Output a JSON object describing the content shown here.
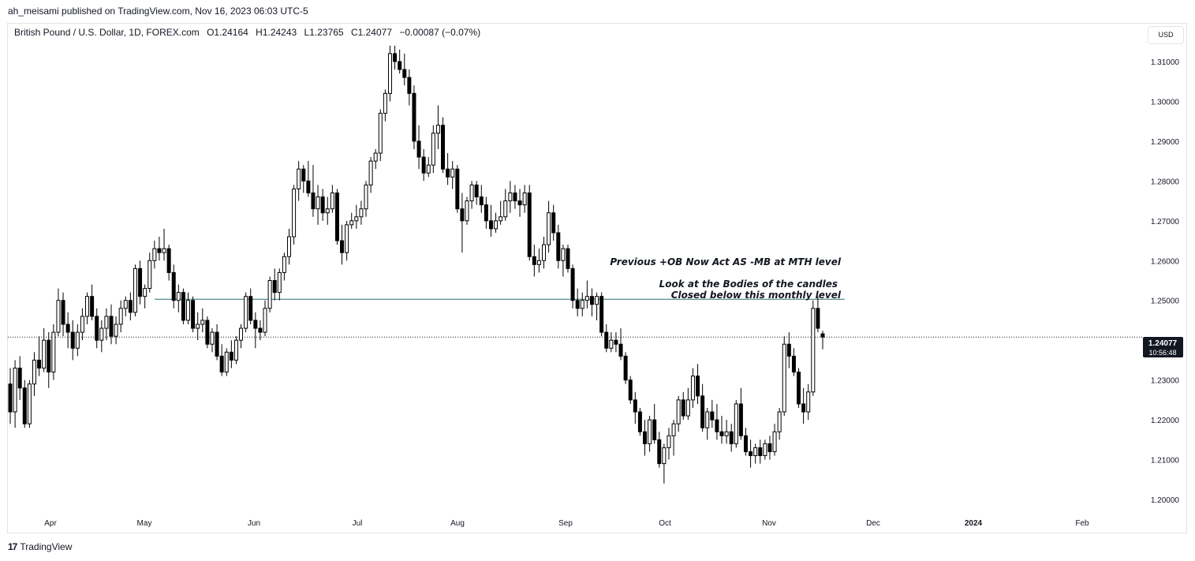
{
  "header": {
    "published": "ah_meisami published on TradingView.com, Nov 16, 2023 06:03 UTC-5"
  },
  "symbol": {
    "name": "British Pound / U.S. Dollar, 1D, FOREX.com",
    "open": "O1.24164",
    "high": "H1.24243",
    "low": "L1.23765",
    "close": "C1.24077",
    "change": "−0.00087 (−0.07%)"
  },
  "currency_button": "USD",
  "price_badge": {
    "price": "1.24077",
    "countdown": "10:56:48"
  },
  "annotations": {
    "line1": "Previous +OB Now Act AS -MB at MTH level",
    "line2": "Look at the Bodies of the candles",
    "line3": "Closed below this monthly level"
  },
  "footer": {
    "logo": "17",
    "brand": "TradingView"
  },
  "colors": {
    "up": "#ffffff",
    "down": "#000000",
    "wick": "#000000",
    "level_line": "#2f6f73",
    "axis_text": "#131722"
  },
  "chart_data": {
    "type": "candlestick",
    "y_axis": {
      "min": 1.195,
      "max": 1.3165,
      "ticks": [
        "1.31000",
        "1.30000",
        "1.29000",
        "1.28000",
        "1.27000",
        "1.26000",
        "1.25000",
        "1.23000",
        "1.22000",
        "1.21000",
        "1.20000"
      ]
    },
    "x_axis": {
      "ticks": [
        "Apr",
        "May",
        "Jun",
        "Jul",
        "Aug",
        "Sep",
        "Oct",
        "Nov",
        "Dec",
        "2024",
        "Feb"
      ]
    },
    "horizontal_level": 1.2503,
    "current_price": 1.24077,
    "candles": [
      [
        1.229,
        1.233,
        1.219,
        1.222
      ],
      [
        1.222,
        1.235,
        1.218,
        1.233
      ],
      [
        1.233,
        1.236,
        1.225,
        1.228
      ],
      [
        1.228,
        1.23,
        1.218,
        1.219
      ],
      [
        1.219,
        1.23,
        1.218,
        1.229
      ],
      [
        1.229,
        1.237,
        1.226,
        1.235
      ],
      [
        1.235,
        1.241,
        1.231,
        1.233
      ],
      [
        1.233,
        1.243,
        1.232,
        1.24
      ],
      [
        1.24,
        1.242,
        1.228,
        1.232
      ],
      [
        1.232,
        1.244,
        1.23,
        1.242
      ],
      [
        1.242,
        1.253,
        1.241,
        1.25
      ],
      [
        1.25,
        1.252,
        1.241,
        1.244
      ],
      [
        1.244,
        1.247,
        1.238,
        1.242
      ],
      [
        1.242,
        1.245,
        1.235,
        1.238
      ],
      [
        1.238,
        1.244,
        1.236,
        1.242
      ],
      [
        1.242,
        1.248,
        1.24,
        1.246
      ],
      [
        1.246,
        1.252,
        1.244,
        1.251
      ],
      [
        1.251,
        1.254,
        1.245,
        1.246
      ],
      [
        1.246,
        1.248,
        1.238,
        1.24
      ],
      [
        1.24,
        1.245,
        1.237,
        1.243
      ],
      [
        1.243,
        1.248,
        1.24,
        1.246
      ],
      [
        1.246,
        1.249,
        1.239,
        1.241
      ],
      [
        1.241,
        1.246,
        1.239,
        1.244
      ],
      [
        1.244,
        1.25,
        1.242,
        1.248
      ],
      [
        1.248,
        1.251,
        1.246,
        1.25
      ],
      [
        1.25,
        1.252,
        1.245,
        1.247
      ],
      [
        1.247,
        1.259,
        1.246,
        1.258
      ],
      [
        1.258,
        1.26,
        1.249,
        1.251
      ],
      [
        1.251,
        1.254,
        1.248,
        1.253
      ],
      [
        1.253,
        1.262,
        1.252,
        1.26
      ],
      [
        1.26,
        1.265,
        1.258,
        1.263
      ],
      [
        1.263,
        1.266,
        1.26,
        1.262
      ],
      [
        1.262,
        1.268,
        1.26,
        1.263
      ],
      [
        1.263,
        1.264,
        1.255,
        1.257
      ],
      [
        1.257,
        1.259,
        1.248,
        1.25
      ],
      [
        1.25,
        1.254,
        1.247,
        1.252
      ],
      [
        1.252,
        1.253,
        1.244,
        1.245
      ],
      [
        1.245,
        1.252,
        1.244,
        1.25
      ],
      [
        1.25,
        1.251,
        1.242,
        1.243
      ],
      [
        1.243,
        1.247,
        1.24,
        1.244
      ],
      [
        1.244,
        1.248,
        1.242,
        1.245
      ],
      [
        1.245,
        1.246,
        1.238,
        1.239
      ],
      [
        1.239,
        1.243,
        1.237,
        1.242
      ],
      [
        1.242,
        1.244,
        1.235,
        1.236
      ],
      [
        1.236,
        1.239,
        1.231,
        1.232
      ],
      [
        1.232,
        1.238,
        1.231,
        1.237
      ],
      [
        1.237,
        1.24,
        1.233,
        1.235
      ],
      [
        1.235,
        1.241,
        1.234,
        1.24
      ],
      [
        1.24,
        1.244,
        1.238,
        1.243
      ],
      [
        1.243,
        1.252,
        1.242,
        1.251
      ],
      [
        1.251,
        1.253,
        1.244,
        1.245
      ],
      [
        1.245,
        1.247,
        1.238,
        1.243
      ],
      [
        1.243,
        1.245,
        1.24,
        1.242
      ],
      [
        1.242,
        1.25,
        1.241,
        1.248
      ],
      [
        1.248,
        1.256,
        1.247,
        1.255
      ],
      [
        1.255,
        1.258,
        1.25,
        1.252
      ],
      [
        1.252,
        1.258,
        1.25,
        1.257
      ],
      [
        1.257,
        1.262,
        1.255,
        1.261
      ],
      [
        1.261,
        1.268,
        1.259,
        1.266
      ],
      [
        1.266,
        1.279,
        1.264,
        1.278
      ],
      [
        1.278,
        1.285,
        1.275,
        1.283
      ],
      [
        1.283,
        1.284,
        1.277,
        1.28
      ],
      [
        1.28,
        1.285,
        1.276,
        1.277
      ],
      [
        1.277,
        1.284,
        1.271,
        1.273
      ],
      [
        1.273,
        1.279,
        1.269,
        1.276
      ],
      [
        1.276,
        1.278,
        1.27,
        1.272
      ],
      [
        1.272,
        1.276,
        1.269,
        1.273
      ],
      [
        1.273,
        1.279,
        1.272,
        1.277
      ],
      [
        1.277,
        1.278,
        1.264,
        1.265
      ],
      [
        1.265,
        1.269,
        1.259,
        1.262
      ],
      [
        1.262,
        1.27,
        1.26,
        1.269
      ],
      [
        1.269,
        1.272,
        1.268,
        1.27
      ],
      [
        1.27,
        1.274,
        1.268,
        1.271
      ],
      [
        1.271,
        1.275,
        1.269,
        1.273
      ],
      [
        1.273,
        1.28,
        1.271,
        1.279
      ],
      [
        1.279,
        1.286,
        1.277,
        1.285
      ],
      [
        1.285,
        1.288,
        1.283,
        1.287
      ],
      [
        1.287,
        1.298,
        1.285,
        1.297
      ],
      [
        1.297,
        1.303,
        1.295,
        1.302
      ],
      [
        1.302,
        1.314,
        1.3,
        1.312
      ],
      [
        1.312,
        1.314,
        1.308,
        1.31
      ],
      [
        1.31,
        1.313,
        1.307,
        1.308
      ],
      [
        1.308,
        1.312,
        1.304,
        1.306
      ],
      [
        1.306,
        1.308,
        1.299,
        1.302
      ],
      [
        1.302,
        1.304,
        1.288,
        1.29
      ],
      [
        1.29,
        1.294,
        1.283,
        1.286
      ],
      [
        1.286,
        1.288,
        1.28,
        1.282
      ],
      [
        1.282,
        1.286,
        1.281,
        1.284
      ],
      [
        1.284,
        1.294,
        1.282,
        1.292
      ],
      [
        1.292,
        1.299,
        1.288,
        1.294
      ],
      [
        1.294,
        1.296,
        1.282,
        1.283
      ],
      [
        1.283,
        1.287,
        1.279,
        1.281
      ],
      [
        1.281,
        1.285,
        1.278,
        1.283
      ],
      [
        1.283,
        1.284,
        1.272,
        1.273
      ],
      [
        1.273,
        1.277,
        1.262,
        1.27
      ],
      [
        1.27,
        1.276,
        1.269,
        1.275
      ],
      [
        1.275,
        1.28,
        1.273,
        1.279
      ],
      [
        1.279,
        1.28,
        1.274,
        1.276
      ],
      [
        1.276,
        1.279,
        1.272,
        1.274
      ],
      [
        1.274,
        1.276,
        1.268,
        1.27
      ],
      [
        1.27,
        1.274,
        1.266,
        1.268
      ],
      [
        1.268,
        1.272,
        1.267,
        1.27
      ],
      [
        1.27,
        1.275,
        1.269,
        1.271
      ],
      [
        1.271,
        1.278,
        1.27,
        1.275
      ],
      [
        1.275,
        1.28,
        1.272,
        1.277
      ],
      [
        1.277,
        1.279,
        1.273,
        1.275
      ],
      [
        1.275,
        1.278,
        1.271,
        1.274
      ],
      [
        1.274,
        1.279,
        1.272,
        1.277
      ],
      [
        1.277,
        1.279,
        1.26,
        1.261
      ],
      [
        1.261,
        1.264,
        1.256,
        1.259
      ],
      [
        1.259,
        1.263,
        1.257,
        1.26
      ],
      [
        1.26,
        1.266,
        1.258,
        1.264
      ],
      [
        1.264,
        1.275,
        1.262,
        1.272
      ],
      [
        1.272,
        1.274,
        1.265,
        1.267
      ],
      [
        1.267,
        1.269,
        1.258,
        1.26
      ],
      [
        1.26,
        1.264,
        1.256,
        1.263
      ],
      [
        1.263,
        1.264,
        1.257,
        1.258
      ],
      [
        1.258,
        1.259,
        1.248,
        1.25
      ],
      [
        1.25,
        1.253,
        1.246,
        1.248
      ],
      [
        1.248,
        1.252,
        1.246,
        1.25
      ],
      [
        1.25,
        1.255,
        1.248,
        1.251
      ],
      [
        1.251,
        1.253,
        1.246,
        1.249
      ],
      [
        1.249,
        1.252,
        1.245,
        1.251
      ],
      [
        1.251,
        1.252,
        1.241,
        1.242
      ],
      [
        1.242,
        1.244,
        1.237,
        1.238
      ],
      [
        1.238,
        1.242,
        1.237,
        1.24
      ],
      [
        1.24,
        1.242,
        1.237,
        1.239
      ],
      [
        1.239,
        1.243,
        1.235,
        1.236
      ],
      [
        1.236,
        1.237,
        1.229,
        1.23
      ],
      [
        1.23,
        1.231,
        1.224,
        1.225
      ],
      [
        1.225,
        1.227,
        1.219,
        1.222
      ],
      [
        1.222,
        1.223,
        1.216,
        1.217
      ],
      [
        1.217,
        1.22,
        1.211,
        1.214
      ],
      [
        1.214,
        1.221,
        1.212,
        1.22
      ],
      [
        1.22,
        1.224,
        1.214,
        1.215
      ],
      [
        1.215,
        1.217,
        1.208,
        1.209
      ],
      [
        1.209,
        1.214,
        1.204,
        1.213
      ],
      [
        1.213,
        1.218,
        1.21,
        1.216
      ],
      [
        1.216,
        1.22,
        1.211,
        1.219
      ],
      [
        1.219,
        1.226,
        1.217,
        1.225
      ],
      [
        1.225,
        1.227,
        1.22,
        1.221
      ],
      [
        1.221,
        1.228,
        1.22,
        1.225
      ],
      [
        1.225,
        1.233,
        1.223,
        1.231
      ],
      [
        1.231,
        1.234,
        1.224,
        1.226
      ],
      [
        1.226,
        1.229,
        1.217,
        1.218
      ],
      [
        1.218,
        1.223,
        1.215,
        1.222
      ],
      [
        1.222,
        1.225,
        1.218,
        1.22
      ],
      [
        1.22,
        1.224,
        1.215,
        1.217
      ],
      [
        1.217,
        1.221,
        1.214,
        1.216
      ],
      [
        1.216,
        1.22,
        1.214,
        1.217
      ],
      [
        1.217,
        1.219,
        1.212,
        1.214
      ],
      [
        1.214,
        1.225,
        1.213,
        1.224
      ],
      [
        1.224,
        1.228,
        1.215,
        1.216
      ],
      [
        1.216,
        1.218,
        1.211,
        1.212
      ],
      [
        1.212,
        1.215,
        1.208,
        1.211
      ],
      [
        1.211,
        1.214,
        1.209,
        1.213
      ],
      [
        1.213,
        1.215,
        1.209,
        1.211
      ],
      [
        1.211,
        1.215,
        1.21,
        1.214
      ],
      [
        1.214,
        1.216,
        1.21,
        1.212
      ],
      [
        1.212,
        1.219,
        1.211,
        1.217
      ],
      [
        1.217,
        1.223,
        1.215,
        1.222
      ],
      [
        1.222,
        1.241,
        1.221,
        1.239
      ],
      [
        1.239,
        1.242,
        1.233,
        1.236
      ],
      [
        1.236,
        1.238,
        1.231,
        1.232
      ],
      [
        1.232,
        1.233,
        1.223,
        1.224
      ],
      [
        1.224,
        1.228,
        1.219,
        1.222
      ],
      [
        1.222,
        1.229,
        1.22,
        1.227
      ],
      [
        1.227,
        1.25,
        1.226,
        1.248
      ],
      [
        1.248,
        1.251,
        1.242,
        1.243
      ],
      [
        1.2416,
        1.2424,
        1.2377,
        1.2408
      ]
    ]
  }
}
